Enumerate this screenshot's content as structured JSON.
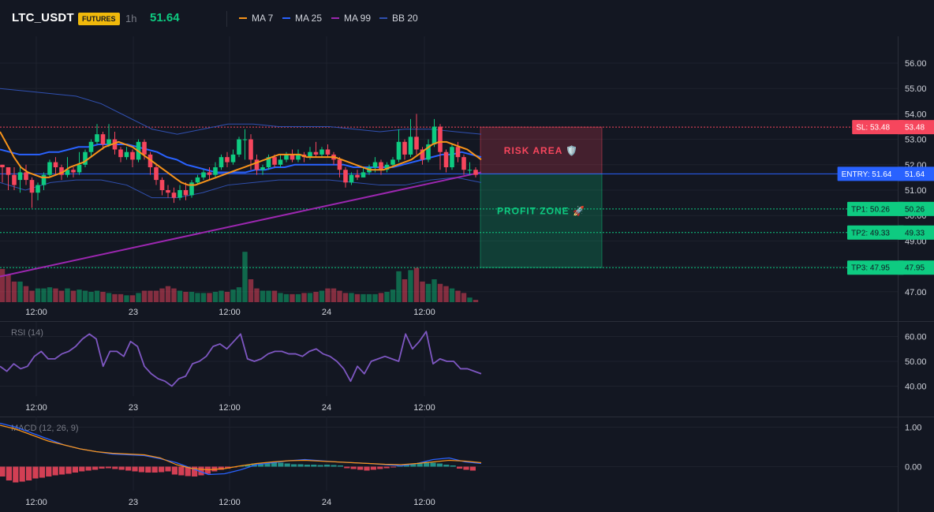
{
  "header": {
    "symbol": "LTC_USDT",
    "badge": "FUTURES",
    "timeframe": "1h",
    "price": "51.64",
    "legend": [
      {
        "label": "MA 7",
        "color": "#f7931a"
      },
      {
        "label": "MA 25",
        "color": "#2962ff"
      },
      {
        "label": "MA 99",
        "color": "#9c27b0"
      },
      {
        "label": "BB 20",
        "color": "#3050b0"
      }
    ]
  },
  "colors": {
    "up": "#0ecb81",
    "down": "#f6465d",
    "sl": "#f6465d",
    "entry": "#2962ff",
    "tp": "#0ecb81"
  },
  "chart_data": [
    {
      "type": "candlestick",
      "title": "LTC_USDT",
      "x_ticks": [
        "12:00",
        "23",
        "12:00",
        "24",
        "12:00"
      ],
      "y_ticks": [
        56.0,
        55.0,
        54.0,
        53.0,
        52.0,
        51.0,
        50.0,
        49.0,
        48.0,
        47.0
      ],
      "ylim": [
        46.6,
        57.0
      ],
      "candles": [
        [
          52.0,
          51.9,
          52.0,
          51.3
        ],
        [
          51.9,
          51.6,
          51.9,
          51.0
        ],
        [
          51.6,
          51.2,
          51.9,
          51.0
        ],
        [
          51.4,
          51.7,
          51.9,
          50.9
        ],
        [
          51.7,
          51.4,
          52.0,
          51.2
        ],
        [
          51.4,
          50.9,
          51.5,
          50.3
        ],
        [
          50.9,
          51.2,
          51.3,
          50.6
        ],
        [
          51.2,
          51.6,
          51.7,
          51.0
        ],
        [
          51.6,
          52.1,
          52.2,
          51.5
        ],
        [
          52.1,
          51.9,
          52.3,
          51.6
        ],
        [
          51.9,
          51.6,
          52.0,
          51.4
        ],
        [
          51.6,
          51.8,
          52.3,
          51.5
        ],
        [
          51.8,
          51.7,
          51.9,
          51.5
        ],
        [
          51.7,
          52.0,
          52.5,
          51.6
        ],
        [
          52.0,
          52.5,
          52.6,
          51.9
        ],
        [
          52.5,
          52.9,
          53.0,
          52.3
        ],
        [
          52.9,
          53.2,
          53.6,
          52.8
        ],
        [
          53.2,
          52.8,
          53.3,
          52.6
        ],
        [
          52.8,
          53.0,
          53.6,
          52.7
        ],
        [
          53.0,
          52.6,
          53.3,
          52.4
        ],
        [
          52.6,
          52.3,
          52.7,
          52.1
        ],
        [
          52.3,
          52.5,
          52.7,
          52.2
        ],
        [
          52.5,
          52.2,
          52.6,
          51.9
        ],
        [
          52.2,
          52.9,
          53.0,
          52.1
        ],
        [
          52.9,
          52.4,
          53.0,
          52.2
        ],
        [
          52.4,
          51.9,
          52.5,
          51.6
        ],
        [
          51.9,
          51.4,
          52.0,
          51.2
        ],
        [
          51.4,
          51.0,
          51.5,
          50.8
        ],
        [
          51.0,
          50.9,
          51.2,
          50.7
        ],
        [
          50.9,
          50.7,
          51.1,
          50.5
        ],
        [
          50.7,
          51.0,
          51.2,
          50.6
        ],
        [
          51.0,
          50.8,
          51.3,
          50.6
        ],
        [
          50.8,
          51.3,
          51.4,
          50.7
        ],
        [
          51.3,
          51.5,
          51.6,
          51.2
        ],
        [
          51.5,
          51.7,
          51.8,
          51.4
        ],
        [
          51.7,
          51.6,
          51.9,
          51.4
        ],
        [
          51.6,
          51.9,
          52.1,
          51.5
        ],
        [
          51.9,
          52.3,
          52.4,
          51.8
        ],
        [
          52.3,
          52.1,
          52.5,
          51.9
        ],
        [
          52.1,
          52.4,
          52.6,
          52.0
        ],
        [
          52.4,
          53.0,
          53.1,
          52.3
        ],
        [
          53.0,
          53.0,
          53.4,
          52.2
        ],
        [
          53.0,
          52.2,
          53.2,
          51.8
        ],
        [
          52.2,
          51.8,
          52.4,
          51.6
        ],
        [
          51.8,
          51.9,
          52.0,
          51.6
        ],
        [
          51.9,
          52.3,
          52.4,
          51.8
        ],
        [
          52.3,
          52.0,
          52.4,
          51.9
        ],
        [
          52.0,
          52.2,
          52.4,
          51.9
        ],
        [
          52.2,
          52.4,
          52.5,
          52.1
        ],
        [
          52.4,
          52.2,
          52.6,
          52.1
        ],
        [
          52.2,
          52.4,
          52.6,
          52.1
        ],
        [
          52.4,
          52.3,
          52.5,
          52.1
        ],
        [
          52.3,
          52.5,
          52.7,
          52.2
        ],
        [
          52.5,
          52.4,
          52.9,
          52.3
        ],
        [
          52.4,
          52.6,
          52.7,
          52.3
        ],
        [
          52.6,
          52.4,
          52.8,
          52.3
        ],
        [
          52.4,
          52.2,
          52.5,
          52.0
        ],
        [
          52.2,
          51.8,
          52.3,
          51.5
        ],
        [
          51.8,
          51.3,
          51.9,
          51.1
        ],
        [
          51.3,
          51.6,
          51.7,
          51.2
        ],
        [
          51.6,
          51.5,
          51.8,
          51.4
        ],
        [
          51.5,
          51.7,
          51.9,
          51.5
        ],
        [
          51.7,
          51.9,
          52.0,
          51.6
        ],
        [
          51.9,
          52.1,
          52.3,
          51.7
        ],
        [
          52.1,
          51.8,
          52.2,
          51.6
        ],
        [
          51.8,
          52.0,
          52.1,
          51.7
        ],
        [
          52.0,
          52.2,
          52.3,
          51.9
        ],
        [
          52.2,
          52.9,
          53.4,
          52.1
        ],
        [
          52.9,
          52.4,
          53.0,
          52.2
        ],
        [
          52.4,
          53.1,
          53.8,
          52.3
        ],
        [
          53.1,
          52.6,
          54.0,
          52.4
        ],
        [
          52.6,
          52.2,
          52.7,
          52.0
        ],
        [
          52.2,
          52.8,
          53.0,
          52.1
        ],
        [
          52.8,
          53.5,
          53.8,
          52.7
        ],
        [
          53.5,
          52.5,
          53.6,
          51.8
        ],
        [
          52.5,
          51.9,
          52.6,
          51.7
        ],
        [
          51.9,
          52.7,
          52.8,
          51.8
        ],
        [
          52.7,
          52.3,
          52.9,
          52.1
        ],
        [
          52.3,
          51.8,
          52.4,
          51.6
        ],
        [
          51.8,
          51.8,
          52.1,
          51.6
        ],
        [
          51.8,
          51.6,
          51.9,
          51.5
        ]
      ],
      "volume": [
        14.5,
        12,
        9,
        9,
        7,
        5,
        6,
        6,
        6.5,
        6,
        5,
        6,
        5,
        5.5,
        5,
        4.5,
        5,
        4.5,
        4,
        3.5,
        3.5,
        3,
        3,
        4,
        5,
        5,
        5,
        6,
        7,
        6,
        5,
        4.5,
        4.5,
        4,
        4,
        4,
        4.5,
        5,
        4.5,
        5.5,
        6.5,
        22,
        10,
        6,
        5,
        5,
        5,
        4,
        3.5,
        3.5,
        3.5,
        4,
        4,
        4.5,
        5,
        6,
        6,
        5,
        4,
        4,
        3.5,
        3.5,
        3.5,
        3.5,
        4,
        4.5,
        5.5,
        13.5,
        10,
        14,
        15,
        9,
        8,
        10,
        8,
        7,
        6,
        5,
        4,
        2,
        1
      ],
      "ma7": [
        53.3,
        52.8,
        52.3,
        51.9,
        51.7,
        51.6,
        51.5,
        51.5,
        51.6,
        51.7,
        51.9,
        52.0,
        52.1,
        52.3,
        52.5,
        52.7,
        52.8,
        52.9,
        52.8,
        52.7,
        52.5,
        52.3,
        52.1,
        51.9,
        51.7,
        51.5,
        51.3,
        51.2,
        51.2,
        51.3,
        51.4,
        51.5,
        51.6,
        51.7,
        51.8,
        51.9,
        52.0,
        52.1,
        52.2,
        52.3,
        52.4,
        52.4,
        52.4,
        52.4,
        52.3,
        52.3,
        52.3,
        52.3,
        52.3,
        52.2,
        52.1,
        52.0,
        51.9,
        51.8,
        51.8,
        51.8,
        51.9,
        52.0,
        52.1,
        52.2,
        52.4,
        52.6,
        52.8,
        52.9,
        52.9,
        52.8,
        52.7,
        52.6,
        52.4,
        52.2
      ],
      "ma25": [
        52.6,
        52.5,
        52.4,
        52.4,
        52.4,
        52.5,
        52.5,
        52.6,
        52.7,
        52.7,
        52.8,
        52.8,
        52.8,
        52.8,
        52.7,
        52.6,
        52.5,
        52.3,
        52.2,
        52.0,
        51.9,
        51.8,
        51.7,
        51.7,
        51.7,
        51.7,
        51.8,
        51.8,
        51.9,
        51.9,
        52.0,
        52.0,
        52.0,
        52.0,
        52.0,
        52.0,
        51.9,
        51.9,
        51.9,
        51.9,
        51.9,
        52.0,
        52.1,
        52.2,
        52.3,
        52.4,
        52.4,
        52.5,
        52.4,
        52.3
      ],
      "ma99": [
        47.6,
        51.7
      ],
      "bb_upper": [
        55.0,
        54.9,
        54.8,
        54.7,
        54.4,
        53.9,
        53.4,
        53.2,
        53.4,
        53.6,
        53.6,
        53.5,
        53.5,
        53.5,
        53.4,
        53.3,
        53.4,
        53.4,
        53.3,
        53.2
      ],
      "bb_lower": [
        51.3,
        51.0,
        51.3,
        51.4,
        51.4,
        51.2,
        50.7,
        50.7,
        50.9,
        51.2,
        51.3,
        51.4,
        51.4,
        51.4,
        51.3,
        51.2,
        51.2,
        51.4,
        51.5,
        51.3
      ],
      "levels": {
        "sl": {
          "value": 53.48,
          "label": "SL: 53.48",
          "price": "53.48"
        },
        "entry": {
          "value": 51.64,
          "label": "ENTRY: 51.64",
          "price": "51.64"
        },
        "tp": [
          {
            "value": 50.26,
            "label": "TP1: 50.26",
            "price": "50.26"
          },
          {
            "value": 49.33,
            "label": "TP2: 49.33",
            "price": "49.33"
          },
          {
            "value": 47.95,
            "label": "TP3: 47.95",
            "price": "47.95"
          }
        ]
      },
      "zones": {
        "risk": "RISK AREA 🛡️",
        "profit": "PROFIT ZONE 🚀"
      }
    },
    {
      "type": "line",
      "title": "RSI (14)",
      "y_ticks": [
        60.0,
        50.0,
        40.0
      ],
      "ylim": [
        35,
        66
      ],
      "series": [
        {
          "name": "RSI (14)",
          "values": [
            48,
            46,
            49,
            47,
            48,
            52,
            54,
            51,
            51,
            53,
            54,
            56,
            59,
            61,
            59,
            48,
            54,
            54,
            52,
            58,
            56,
            48,
            45,
            43,
            42,
            40,
            43,
            44,
            49,
            50,
            52,
            56,
            57,
            55,
            58,
            61,
            51,
            50,
            51,
            53,
            54,
            54,
            53,
            53,
            52,
            54,
            55,
            53,
            52,
            50,
            47,
            42,
            48,
            45,
            50,
            51,
            52,
            51,
            50,
            61,
            55,
            58,
            62,
            49,
            51,
            50,
            50,
            47,
            47,
            46,
            45
          ]
        }
      ]
    },
    {
      "type": "bar",
      "title": "MACD (12, 26, 9)",
      "y_ticks": [
        1.0,
        0.0
      ],
      "ylim": [
        -1.2,
        1.3
      ],
      "histogram": [
        -0.25,
        -0.35,
        -0.4,
        -0.38,
        -0.35,
        -0.3,
        -0.28,
        -0.25,
        -0.22,
        -0.2,
        -0.18,
        -0.15,
        -0.12,
        -0.1,
        -0.08,
        -0.05,
        -0.04,
        -0.06,
        -0.08,
        -0.1,
        -0.12,
        -0.14,
        -0.15,
        -0.15,
        -0.14,
        -0.12,
        -0.2,
        -0.22,
        -0.24,
        -0.25,
        -0.22,
        -0.18,
        -0.12,
        -0.08,
        -0.05,
        -0.02,
        0.02,
        0.05,
        0.08,
        0.08,
        0.1,
        0.12,
        0.1,
        0.08,
        0.06,
        0.06,
        0.05,
        0.05,
        0.04,
        0.05,
        0.04,
        0.03,
        -0.04,
        -0.06,
        -0.08,
        -0.1,
        -0.08,
        -0.06,
        -0.04,
        -0.02,
        0.02,
        0.05,
        0.08,
        0.1,
        0.12,
        0.1,
        0.08,
        0.05,
        0.03,
        -0.05,
        -0.08,
        -0.1
      ],
      "macd": [
        1.1,
        1.0,
        0.85,
        0.7,
        0.55,
        0.45,
        0.38,
        0.32,
        0.3,
        0.28,
        0.2,
        0.1,
        -0.05,
        -0.2,
        -0.18,
        -0.08,
        0.05,
        0.1,
        0.15,
        0.18,
        0.15,
        0.12,
        0.1,
        0.08,
        0.05,
        0.02,
        0.08,
        0.18,
        0.22,
        0.12,
        0.08
      ],
      "signal": [
        1.05,
        0.95,
        0.8,
        0.65,
        0.55,
        0.45,
        0.38,
        0.34,
        0.32,
        0.3,
        0.22,
        0.05,
        -0.05,
        -0.08,
        -0.05,
        0.02,
        0.08,
        0.12,
        0.15,
        0.16,
        0.14,
        0.12,
        0.1,
        0.08,
        0.06,
        0.05,
        0.08,
        0.12,
        0.16,
        0.14,
        0.1
      ]
    }
  ]
}
